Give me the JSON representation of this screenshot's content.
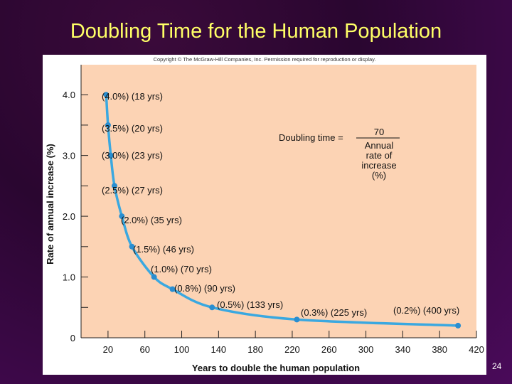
{
  "slide": {
    "title": "Doubling Time for the Human Population",
    "copyright": "Copyright © The McGraw-Hill Companies, Inc. Permission required for reproduction or display.",
    "page_number": "24"
  },
  "formula": {
    "lhs": "Doubling time =",
    "numerator": "70",
    "denominator_lines": [
      "Annual",
      "rate of",
      "increase",
      "(%)"
    ]
  },
  "chart_data": {
    "type": "line",
    "title": "",
    "xlabel": "Years to double the human population",
    "ylabel": "Rate of annual increase (%)",
    "xlim": [
      0,
      420
    ],
    "ylim": [
      0,
      4.4
    ],
    "x_ticks": [
      "20",
      "60",
      "100",
      "140",
      "180",
      "220",
      "260",
      "300",
      "340",
      "380",
      "420"
    ],
    "y_ticks": [
      "0",
      "1.0",
      "2.0",
      "3.0",
      "4.0"
    ],
    "grid": false,
    "points": [
      {
        "x": 18,
        "y": 4.0,
        "label": "(4.0%)  (18 yrs)"
      },
      {
        "x": 20,
        "y": 3.5,
        "label": "(3.5%)  (20 yrs)"
      },
      {
        "x": 23,
        "y": 3.0,
        "label": "(3.0%)  (23 yrs)"
      },
      {
        "x": 27,
        "y": 2.5,
        "label": "(2.5%)  (27 yrs)"
      },
      {
        "x": 35,
        "y": 2.0,
        "label": "(2.0%)  (35 yrs)"
      },
      {
        "x": 46,
        "y": 1.5,
        "label": "(1.5%)  (46 yrs)"
      },
      {
        "x": 70,
        "y": 1.0,
        "label": "(1.0%)  (70 yrs)"
      },
      {
        "x": 90,
        "y": 0.8,
        "label": "(0.8%)  (90 yrs)"
      },
      {
        "x": 133,
        "y": 0.5,
        "label": "(0.5%)  (133 yrs)"
      },
      {
        "x": 225,
        "y": 0.3,
        "label": "(0.3%)  (225 yrs)"
      },
      {
        "x": 400,
        "y": 0.2,
        "label": "(0.2%)  (400 yrs)"
      }
    ],
    "colors": {
      "plot_background": "#fcd3b4",
      "curve": "#3aa8e0",
      "point": "#2a8ed0",
      "axis": "#222222"
    }
  }
}
